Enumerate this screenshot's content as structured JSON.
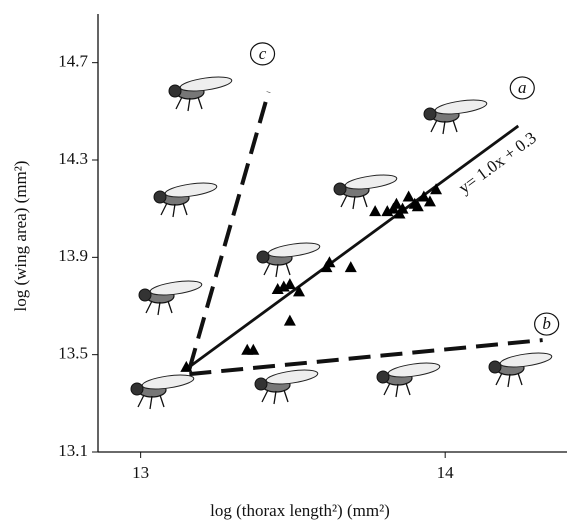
{
  "chart_data": {
    "type": "scatter",
    "xlabel": "log (thorax length²) (mm²)",
    "ylabel": "log (wing area) (mm²)",
    "xlim": [
      12.86,
      14.4
    ],
    "ylim": [
      13.1,
      14.9
    ],
    "xticks": [
      13,
      14
    ],
    "yticks": [
      13.1,
      13.5,
      13.9,
      14.3,
      14.7
    ],
    "color": "#000000",
    "x": [
      13.15,
      13.35,
      13.37,
      13.45,
      13.47,
      13.49,
      13.52,
      13.49,
      13.61,
      13.62,
      13.69,
      13.77,
      13.81,
      13.83,
      13.84,
      13.86,
      13.88,
      13.9,
      13.91,
      13.93,
      13.95,
      13.97,
      13.85
    ],
    "y": [
      13.45,
      13.52,
      13.52,
      13.77,
      13.78,
      13.79,
      13.76,
      13.64,
      13.86,
      13.88,
      13.86,
      14.09,
      14.09,
      14.1,
      14.12,
      14.1,
      14.15,
      14.12,
      14.11,
      14.15,
      14.13,
      14.18,
      14.08
    ],
    "lines": [
      {
        "label": "a",
        "style": "solid",
        "x": [
          13.16,
          14.24
        ],
        "y": [
          13.45,
          14.44
        ]
      },
      {
        "label": "b",
        "style": "dashed",
        "x": [
          13.16,
          14.32
        ],
        "y": [
          13.42,
          13.56
        ]
      },
      {
        "label": "c",
        "style": "dashed",
        "x": [
          13.16,
          13.42
        ],
        "y": [
          13.44,
          14.58
        ]
      }
    ],
    "equation": "y= 1.0x + 0.3"
  }
}
